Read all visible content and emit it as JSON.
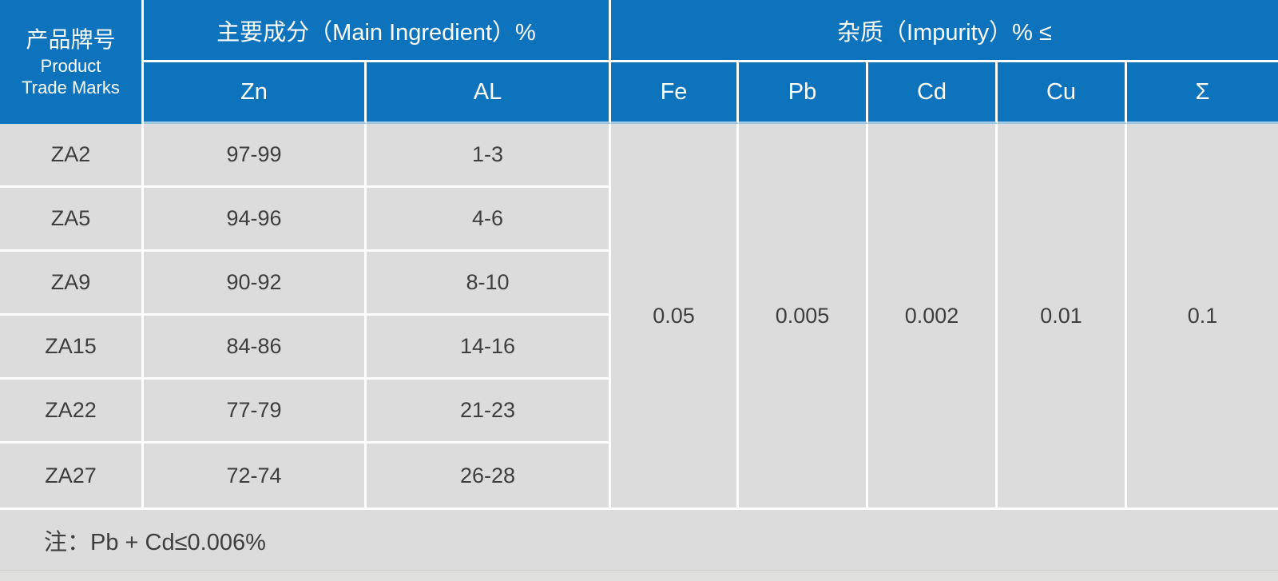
{
  "colors": {
    "header_blue": "#0d73bd",
    "cell_gray": "#dcdcdc",
    "divider_white": "#ffffff",
    "header_bottom_line": "#9fc9e5",
    "header_text": "#ffffff",
    "body_text": "#3e3e3e",
    "bottom_strip": "#e0e0de"
  },
  "table": {
    "trade_mark_header": {
      "cn": "产品牌号",
      "en_line1": "Product",
      "en_line2": "Trade Marks"
    },
    "group_headers": {
      "main_ingredient": "主要成分（Main Ingredient）%",
      "impurity": "杂质（Impurity）% ≤"
    },
    "sub_headers": {
      "zn": "Zn",
      "al": "AL",
      "fe": "Fe",
      "pb": "Pb",
      "cd": "Cd",
      "cu": "Cu",
      "sum": "Σ"
    },
    "rows": [
      {
        "trade_mark": "ZA2",
        "zn": "97-99",
        "al": "1-3"
      },
      {
        "trade_mark": "ZA5",
        "zn": "94-96",
        "al": "4-6"
      },
      {
        "trade_mark": "ZA9",
        "zn": "90-92",
        "al": "8-10"
      },
      {
        "trade_mark": "ZA15",
        "zn": "84-86",
        "al": "14-16"
      },
      {
        "trade_mark": "ZA22",
        "zn": "77-79",
        "al": "21-23"
      },
      {
        "trade_mark": "ZA27",
        "zn": "72-74",
        "al": "26-28"
      }
    ],
    "impurity_limits": {
      "fe": "0.05",
      "pb": "0.005",
      "cd": "0.002",
      "cu": "0.01",
      "sum": "0.1"
    },
    "note": "注：Pb + Cd≤0.006%"
  }
}
